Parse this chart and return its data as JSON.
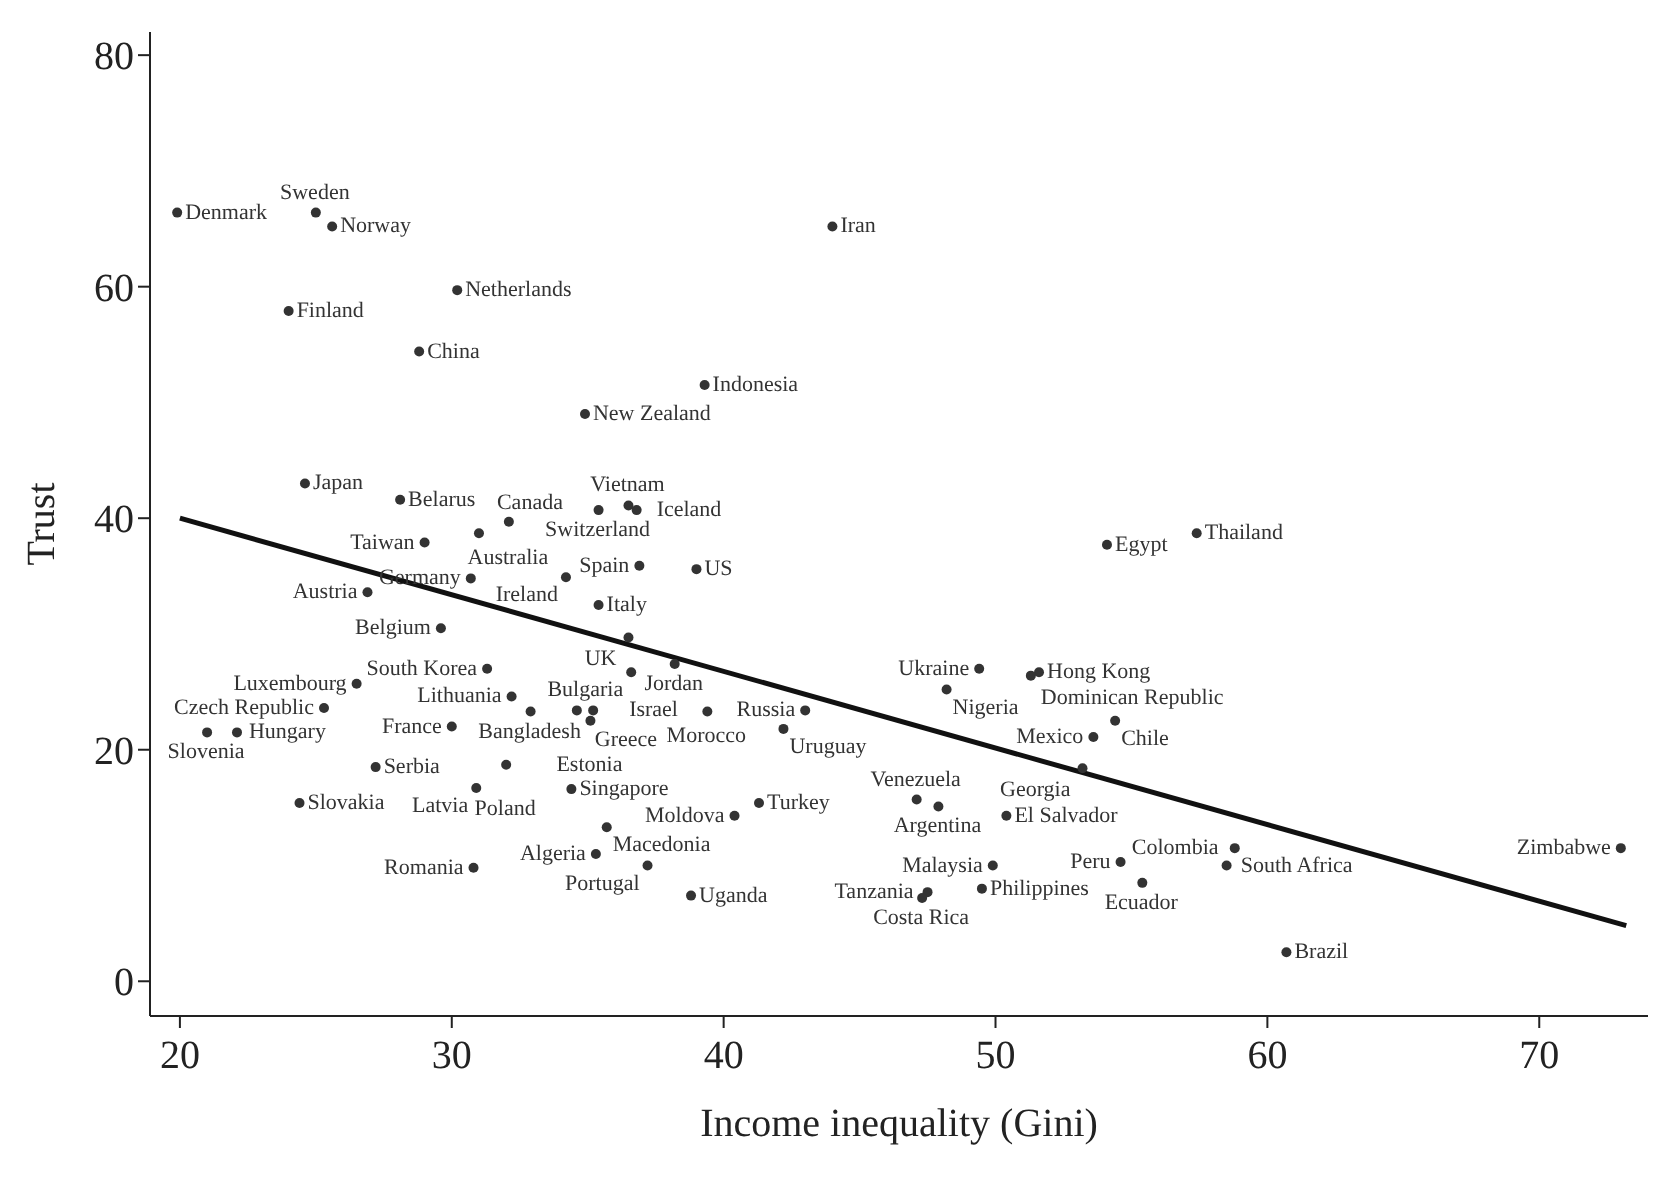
{
  "chart_data": {
    "type": "scatter",
    "xlabel": "Income inequality (Gini)",
    "ylabel": "Trust",
    "xlim": [
      18.9,
      74
    ],
    "ylim": [
      -3,
      82
    ],
    "xticks": [
      20,
      30,
      40,
      50,
      60,
      70
    ],
    "yticks": [
      0,
      20,
      40,
      60,
      80
    ],
    "grid": false,
    "legend": false,
    "series": [
      {
        "color": "#333333",
        "marker": "circle",
        "x": [
          19.9,
          25.0,
          25.6,
          44.0,
          30.2,
          24.0,
          28.8,
          39.3,
          34.9,
          24.6,
          28.1,
          36.5,
          35.4,
          36.8,
          32.1,
          31.0,
          29.0,
          57.4,
          54.1,
          30.7,
          34.2,
          36.9,
          39.0,
          26.9,
          35.4,
          29.6,
          36.5,
          38.2,
          31.3,
          36.6,
          26.5,
          49.4,
          51.6,
          51.3,
          48.2,
          32.2,
          25.3,
          32.9,
          34.6,
          35.2,
          35.1,
          39.4,
          43.0,
          42.2,
          54.4,
          53.6,
          21.0,
          22.1,
          30.0,
          53.2,
          27.2,
          32.0,
          30.9,
          34.4,
          24.4,
          41.3,
          40.4,
          47.1,
          47.9,
          50.4,
          35.7,
          58.8,
          73.0,
          35.3,
          58.5,
          54.6,
          49.9,
          37.2,
          30.8,
          55.4,
          49.5,
          47.5,
          38.8,
          47.3,
          60.7
        ],
        "values": [
          66.4,
          66.4,
          65.2,
          65.2,
          59.7,
          57.9,
          54.4,
          51.5,
          49.0,
          43.0,
          41.6,
          41.1,
          40.7,
          40.7,
          39.7,
          38.7,
          37.9,
          38.7,
          37.7,
          34.8,
          34.9,
          35.9,
          35.6,
          33.6,
          32.5,
          30.5,
          29.7,
          27.4,
          27.0,
          26.7,
          25.7,
          27.0,
          26.7,
          26.4,
          25.2,
          24.6,
          23.6,
          23.3,
          23.4,
          23.4,
          22.5,
          23.3,
          23.4,
          21.8,
          22.5,
          21.1,
          21.5,
          21.5,
          22.0,
          18.4,
          18.5,
          18.7,
          16.7,
          16.6,
          15.4,
          15.4,
          14.3,
          15.7,
          15.1,
          14.3,
          13.3,
          11.5,
          11.5,
          11.0,
          10.0,
          10.3,
          10.0,
          10.0,
          9.8,
          8.5,
          8.0,
          7.7,
          7.4,
          7.2,
          2.5
        ],
        "value_labels": [
          "Denmark",
          "Sweden",
          "Norway",
          "Iran",
          "Netherlands",
          "Finland",
          "China",
          "Indonesia",
          "New Zealand",
          "Japan",
          "Belarus",
          "Vietnam",
          "Switzerland",
          "Iceland",
          "Australia",
          "Canada",
          "Taiwan",
          "Thailand",
          "Egypt",
          "Germany",
          "Ireland",
          "Spain",
          "US",
          "Austria",
          "Italy",
          "Belgium",
          "UK",
          "Jordan",
          "South Korea",
          "Bulgaria",
          "Luxembourg",
          "Ukraine",
          "Hong Kong",
          "Dominican Republic",
          "Nigeria",
          "Lithuania",
          "Czech Republic",
          "Bangladesh",
          "Greece",
          "Israel",
          "Estonia",
          "Morocco",
          "Russia",
          "Uruguay",
          "Chile",
          "Mexico",
          "Slovenia",
          "Hungary",
          "France",
          "Georgia",
          "Serbia",
          "Poland",
          "Latvia",
          "Singapore",
          "Slovakia",
          "Turkey",
          "Moldova",
          "Venezuela",
          "Argentina",
          "El Salvador",
          "Macedonia",
          "South Africa",
          "Zimbabwe",
          "Algeria",
          "Colombia",
          "Peru",
          "Malaysia",
          "Portugal",
          "Romania",
          "Ecuador",
          "Philippines",
          "Tanzania",
          "Uganda",
          "Costa Rica",
          "Brazil"
        ]
      },
      {
        "type": "line",
        "color": "#111111",
        "x": [
          20,
          73.2
        ],
        "values": [
          40.0,
          4.8
        ]
      }
    ]
  }
}
